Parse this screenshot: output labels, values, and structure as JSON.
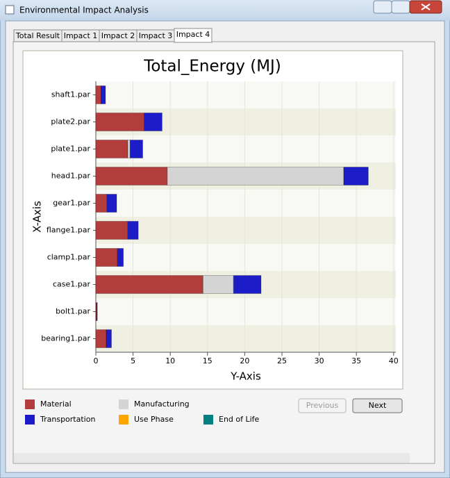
{
  "window": {
    "title": "Environmental Impact Analysis"
  },
  "tabs": [
    {
      "label": "Total Result",
      "active": false
    },
    {
      "label": "Impact 1",
      "active": false
    },
    {
      "label": "Impact 2",
      "active": false
    },
    {
      "label": "Impact 3",
      "active": false
    },
    {
      "label": "Impact 4",
      "active": true
    }
  ],
  "chart_data": {
    "type": "bar",
    "orientation": "horizontal",
    "stacked": true,
    "title": "Total_Energy (MJ)",
    "category_axis_label": "X-Axis",
    "value_axis_label": "Y-Axis",
    "categories": [
      "shaft1.par",
      "plate2.par",
      "plate1.par",
      "head1.par",
      "gear1.par",
      "flange1.par",
      "clamp1.par",
      "case1.par",
      "bolt1.par",
      "bearing1.par"
    ],
    "series": [
      {
        "name": "Material",
        "color": "#b33c3c",
        "values": [
          0.7,
          6.5,
          4.3,
          9.6,
          1.5,
          4.3,
          2.9,
          14.4,
          0.1,
          1.4
        ]
      },
      {
        "name": "Manufacturing",
        "color": "#d4d4d4",
        "values": [
          0,
          0,
          0.3,
          23.7,
          0,
          0,
          0,
          4.1,
          0,
          0
        ]
      },
      {
        "name": "Transportation",
        "color": "#1c1cc8",
        "values": [
          0.6,
          2.4,
          1.7,
          3.3,
          1.3,
          1.4,
          0.8,
          3.7,
          0.1,
          0.7
        ]
      },
      {
        "name": "Use Phase",
        "color": "#ffa500",
        "values": [
          0,
          0,
          0,
          0,
          0,
          0,
          0,
          0,
          0,
          0
        ]
      },
      {
        "name": "End of Life",
        "color": "#008080",
        "values": [
          0,
          0,
          0,
          0,
          0,
          0,
          0,
          0,
          0,
          0
        ]
      }
    ],
    "xlim": [
      0,
      40.3
    ],
    "xticks": [
      0,
      5,
      10,
      15,
      20,
      25,
      30,
      35,
      40
    ],
    "grid": true
  },
  "buttons": [
    {
      "label": "Previous",
      "enabled": false
    },
    {
      "label": "Next",
      "enabled": true
    }
  ]
}
